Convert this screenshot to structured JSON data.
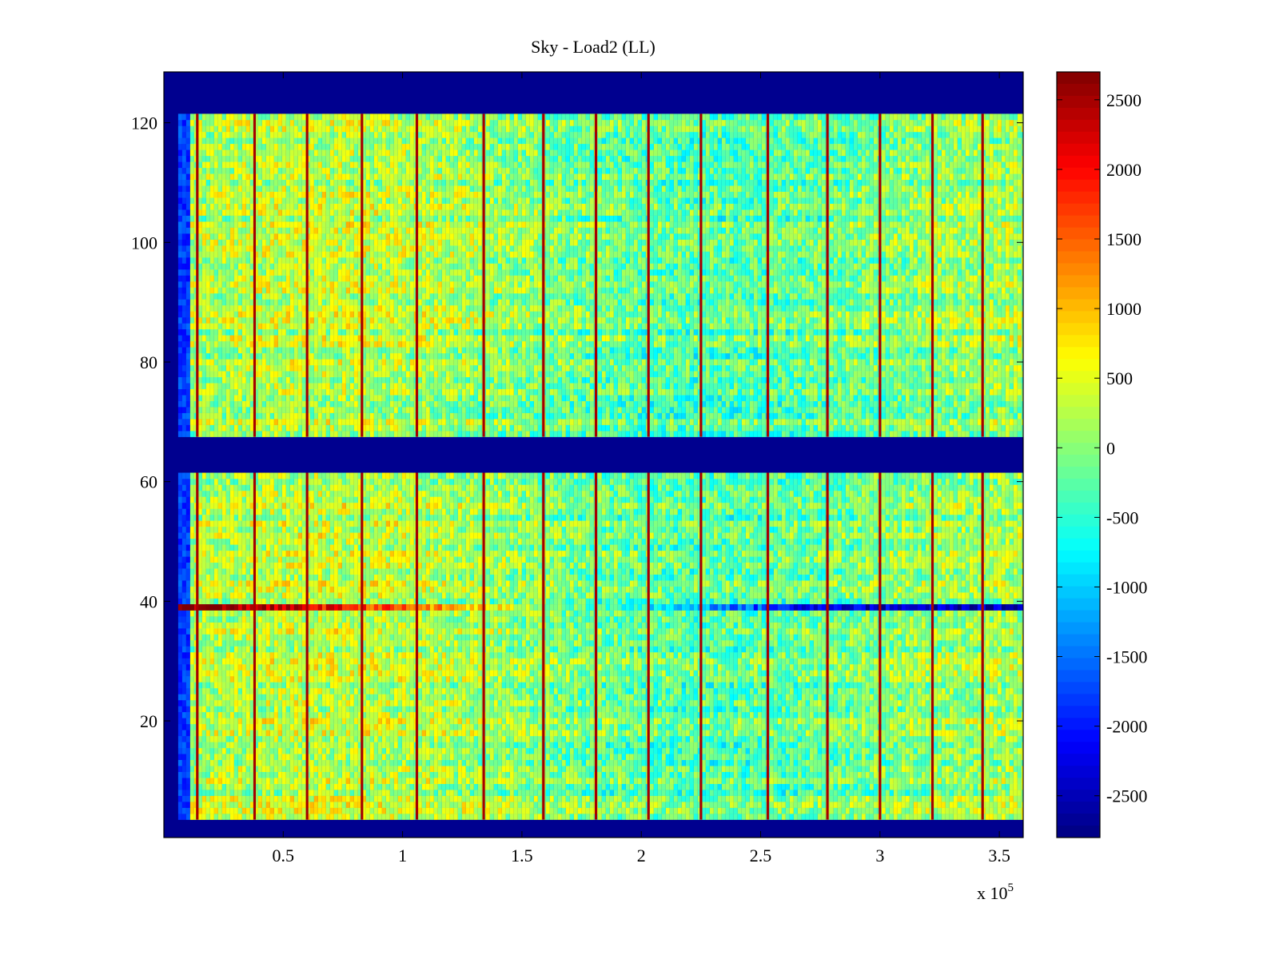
{
  "chart_data": {
    "type": "heatmap",
    "title": "Sky - Load2 (LL)",
    "xlabel": "",
    "ylabel": "",
    "x_multiplier_label": "x 10",
    "x_multiplier_exponent": "5",
    "xlim": [
      0,
      3.6
    ],
    "ylim": [
      0.5,
      128.5
    ],
    "xticks": [
      0.5,
      1,
      1.5,
      2,
      2.5,
      3,
      3.5
    ],
    "xtick_labels": [
      "0.5",
      "1",
      "1.5",
      "2",
      "2.5",
      "3",
      "3.5"
    ],
    "yticks": [
      20,
      40,
      60,
      80,
      100,
      120
    ],
    "ytick_labels": [
      "20",
      "40",
      "60",
      "80",
      "100",
      "120"
    ],
    "colormap": "jet",
    "clim": [
      -2800,
      2700
    ],
    "colorbar_ticks": [
      2500,
      2000,
      1500,
      1000,
      500,
      0,
      -500,
      -1000,
      -1500,
      -2000,
      -2500
    ],
    "colorbar_tick_labels": [
      "2500",
      "2000",
      "1500",
      "1000",
      "500",
      "0",
      "-500",
      "-1000",
      "-1500",
      "-2000",
      "-2500"
    ],
    "no_data_value": -2800,
    "valid_row_ranges": [
      [
        4,
        61
      ],
      [
        68,
        121
      ]
    ],
    "valid_x_start": 0.06,
    "background_level": 100,
    "spike_columns_x": [
      0.14,
      0.38,
      0.6,
      0.83,
      1.06,
      1.34,
      1.59,
      1.81,
      2.03,
      2.25,
      2.53,
      2.78,
      3.0,
      3.22,
      3.43
    ],
    "spike_value": 2500,
    "anomalous_row": {
      "row": 39,
      "trend": [
        [
          0.06,
          2700
        ],
        [
          0.4,
          2400
        ],
        [
          0.8,
          1800
        ],
        [
          1.3,
          900
        ],
        [
          1.7,
          -200
        ],
        [
          2.2,
          -1000
        ],
        [
          2.6,
          -2000
        ],
        [
          3.0,
          -2400
        ],
        [
          3.6,
          -2500
        ]
      ]
    }
  }
}
